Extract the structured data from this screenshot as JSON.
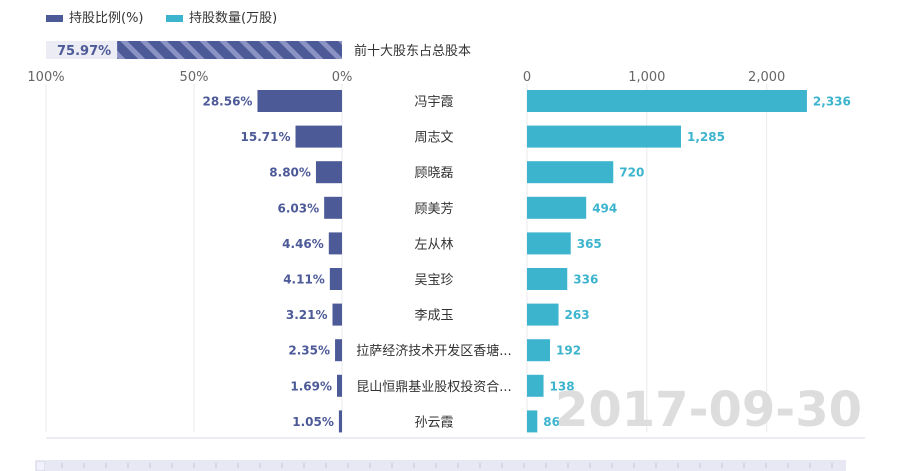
{
  "chart_data": {
    "type": "bar",
    "legend": {
      "position": "top-left",
      "items": [
        {
          "name": "持股比例(%)",
          "color": "#4d5a98"
        },
        {
          "name": "持股数量(万股)",
          "color": "#3db4cd"
        }
      ]
    },
    "summary": {
      "label": "前十大股东占总股本",
      "value": 75.97,
      "value_label": "75.97%"
    },
    "categories": [
      "冯宇霞",
      "周志文",
      "顾晓磊",
      "顾美芳",
      "左从林",
      "吴宝珍",
      "李成玉",
      "拉萨经济技术开发区香塘...",
      "昆山恒鼎基业股权投资合...",
      "孙云霞"
    ],
    "series": [
      {
        "name": "持股比例(%)",
        "values": [
          28.56,
          15.71,
          8.8,
          6.03,
          4.46,
          4.11,
          3.21,
          2.35,
          1.69,
          1.05
        ],
        "labels": [
          "28.56%",
          "15.71%",
          "8.80%",
          "6.03%",
          "4.46%",
          "4.11%",
          "3.21%",
          "2.35%",
          "1.69%",
          "1.05%"
        ],
        "axis_ticks": [
          "100%",
          "50%",
          "0%"
        ],
        "xlim": [
          0,
          100
        ],
        "direction": "reversed"
      },
      {
        "name": "持股数量(万股)",
        "values": [
          2336,
          1285,
          720,
          494,
          365,
          336,
          263,
          192,
          138,
          86
        ],
        "labels": [
          "2,336",
          "1,285",
          "720",
          "494",
          "365",
          "336",
          "263",
          "192",
          "138",
          "86"
        ],
        "axis_ticks": [
          "0",
          "1,000",
          "2,000"
        ],
        "xlim": [
          0,
          2420
        ]
      }
    ],
    "date_watermark": "2017-09-30",
    "colors": {
      "ratio": "#4d5a98",
      "shares": "#3db4cd",
      "grid": "#e9e9ee",
      "text": "#4a4a4a",
      "watermark": "#dddddd",
      "summary_bg": "#ececf5"
    }
  }
}
